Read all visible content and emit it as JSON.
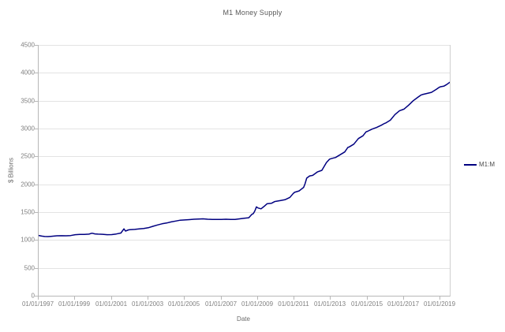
{
  "window": {
    "title": "M1 Money Supply chart"
  },
  "chart": {
    "title": "M1 Money Supply",
    "x_axis_title": "Date",
    "y_axis_title": "$ Billions",
    "legend_label": "M1:M"
  },
  "colors": {
    "series_line": "#000080",
    "gridline": "#e3e3e3",
    "axis_line": "#b7b7b7",
    "tick_text": "#808080",
    "title_text": "#595959",
    "background": "#ffffff"
  },
  "chart_data": {
    "type": "line",
    "title": "M1 Money Supply",
    "xlabel": "Date",
    "ylabel": "$ Billions",
    "legend": [
      "M1:M"
    ],
    "legend_position": "right",
    "grid": "horizontal-only",
    "xlim": [
      1997,
      2019.5
    ],
    "ylim": [
      0,
      4500
    ],
    "y_ticks": [
      0,
      500,
      1000,
      1500,
      2000,
      2500,
      3000,
      3500,
      4000,
      4500
    ],
    "x_ticks": [
      {
        "label": "01/01/1997",
        "year": 1997
      },
      {
        "label": "01/01/1999",
        "year": 1999
      },
      {
        "label": "01/01/2001",
        "year": 2001
      },
      {
        "label": "01/01/2003",
        "year": 2003
      },
      {
        "label": "01/01/2005",
        "year": 2005
      },
      {
        "label": "01/01/2007",
        "year": 2007
      },
      {
        "label": "01/01/2009",
        "year": 2009
      },
      {
        "label": "01/01/2011",
        "year": 2011
      },
      {
        "label": "01/01/2013",
        "year": 2013
      },
      {
        "label": "01/01/2015",
        "year": 2015
      },
      {
        "label": "01/01/2017",
        "year": 2017
      },
      {
        "label": "01/01/2019",
        "year": 2019
      }
    ],
    "series": [
      {
        "name": "M1:M",
        "color": "#000080",
        "points": [
          [
            1997.0,
            1081
          ],
          [
            1997.17,
            1070
          ],
          [
            1997.33,
            1063
          ],
          [
            1997.5,
            1062
          ],
          [
            1997.67,
            1066
          ],
          [
            1997.83,
            1070
          ],
          [
            1998.0,
            1075
          ],
          [
            1998.25,
            1077
          ],
          [
            1998.5,
            1075
          ],
          [
            1998.75,
            1080
          ],
          [
            1999.0,
            1095
          ],
          [
            1999.25,
            1100
          ],
          [
            1999.5,
            1099
          ],
          [
            1999.75,
            1105
          ],
          [
            1999.92,
            1122
          ],
          [
            2000.08,
            1110
          ],
          [
            2000.25,
            1105
          ],
          [
            2000.5,
            1102
          ],
          [
            2000.75,
            1095
          ],
          [
            2001.0,
            1096
          ],
          [
            2001.25,
            1108
          ],
          [
            2001.5,
            1125
          ],
          [
            2001.67,
            1200
          ],
          [
            2001.75,
            1160
          ],
          [
            2001.92,
            1182
          ],
          [
            2002.0,
            1185
          ],
          [
            2002.25,
            1190
          ],
          [
            2002.5,
            1198
          ],
          [
            2002.75,
            1205
          ],
          [
            2003.0,
            1220
          ],
          [
            2003.25,
            1245
          ],
          [
            2003.5,
            1270
          ],
          [
            2003.75,
            1290
          ],
          [
            2004.0,
            1305
          ],
          [
            2004.25,
            1325
          ],
          [
            2004.5,
            1340
          ],
          [
            2004.75,
            1355
          ],
          [
            2005.0,
            1360
          ],
          [
            2005.25,
            1365
          ],
          [
            2005.5,
            1372
          ],
          [
            2005.75,
            1375
          ],
          [
            2006.0,
            1380
          ],
          [
            2006.25,
            1373
          ],
          [
            2006.5,
            1370
          ],
          [
            2006.75,
            1368
          ],
          [
            2007.0,
            1370
          ],
          [
            2007.25,
            1372
          ],
          [
            2007.5,
            1368
          ],
          [
            2007.75,
            1370
          ],
          [
            2008.0,
            1380
          ],
          [
            2008.25,
            1390
          ],
          [
            2008.5,
            1400
          ],
          [
            2008.67,
            1460
          ],
          [
            2008.75,
            1475
          ],
          [
            2008.83,
            1520
          ],
          [
            2008.92,
            1595
          ],
          [
            2009.0,
            1575
          ],
          [
            2009.17,
            1560
          ],
          [
            2009.33,
            1600
          ],
          [
            2009.5,
            1650
          ],
          [
            2009.75,
            1660
          ],
          [
            2009.92,
            1690
          ],
          [
            2010.0,
            1695
          ],
          [
            2010.25,
            1710
          ],
          [
            2010.5,
            1725
          ],
          [
            2010.75,
            1765
          ],
          [
            2010.92,
            1830
          ],
          [
            2011.0,
            1855
          ],
          [
            2011.25,
            1880
          ],
          [
            2011.5,
            1945
          ],
          [
            2011.58,
            2010
          ],
          [
            2011.67,
            2110
          ],
          [
            2011.83,
            2150
          ],
          [
            2012.0,
            2160
          ],
          [
            2012.25,
            2220
          ],
          [
            2012.5,
            2250
          ],
          [
            2012.75,
            2390
          ],
          [
            2012.92,
            2450
          ],
          [
            2013.0,
            2460
          ],
          [
            2013.25,
            2480
          ],
          [
            2013.5,
            2530
          ],
          [
            2013.75,
            2580
          ],
          [
            2013.92,
            2660
          ],
          [
            2014.0,
            2670
          ],
          [
            2014.25,
            2720
          ],
          [
            2014.5,
            2820
          ],
          [
            2014.75,
            2870
          ],
          [
            2014.92,
            2940
          ],
          [
            2015.0,
            2950
          ],
          [
            2015.25,
            2990
          ],
          [
            2015.5,
            3020
          ],
          [
            2015.75,
            3060
          ],
          [
            2015.92,
            3090
          ],
          [
            2016.0,
            3100
          ],
          [
            2016.25,
            3150
          ],
          [
            2016.5,
            3250
          ],
          [
            2016.75,
            3320
          ],
          [
            2016.92,
            3340
          ],
          [
            2017.0,
            3350
          ],
          [
            2017.25,
            3420
          ],
          [
            2017.5,
            3500
          ],
          [
            2017.75,
            3560
          ],
          [
            2017.92,
            3600
          ],
          [
            2018.0,
            3610
          ],
          [
            2018.25,
            3630
          ],
          [
            2018.5,
            3650
          ],
          [
            2018.75,
            3700
          ],
          [
            2018.92,
            3740
          ],
          [
            2019.0,
            3750
          ],
          [
            2019.17,
            3760
          ],
          [
            2019.33,
            3790
          ],
          [
            2019.5,
            3830
          ]
        ]
      }
    ]
  }
}
